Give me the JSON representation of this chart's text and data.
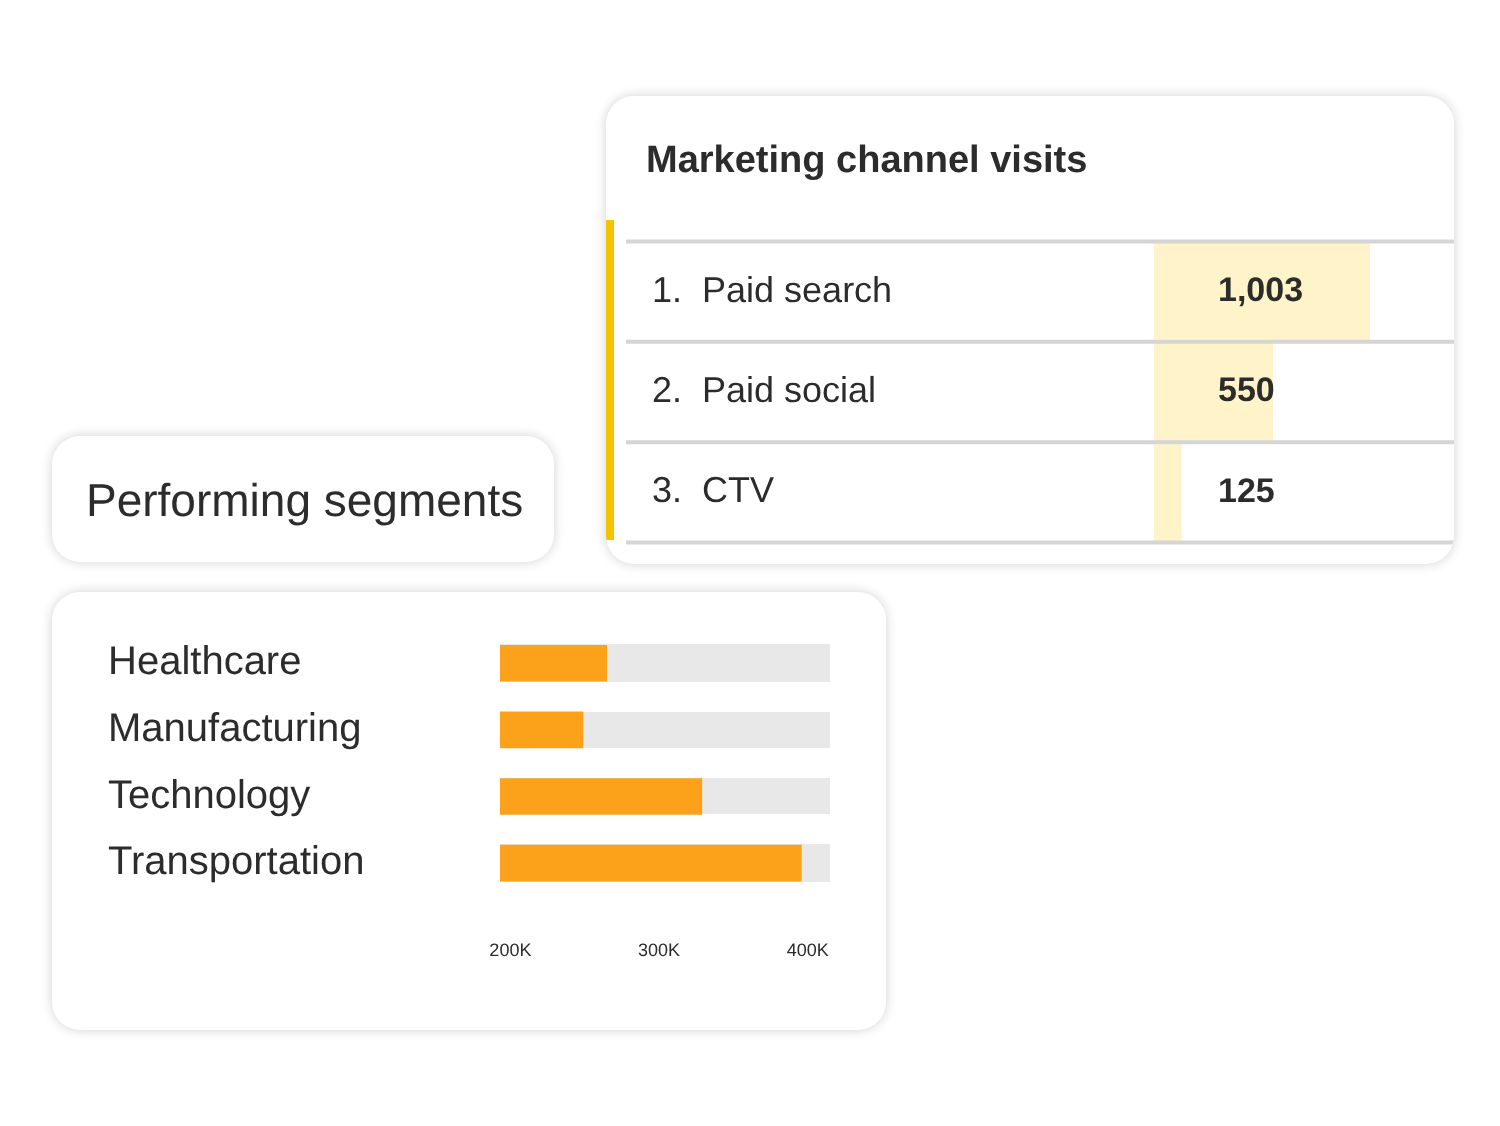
{
  "chart_data": [
    {
      "type": "bar",
      "title": "Marketing channel visits",
      "orientation": "horizontal",
      "categories": [
        "1.  Paid search",
        "2.  Paid social",
        "3.  CTV"
      ],
      "values": [
        1003,
        550,
        125
      ],
      "value_labels": [
        "1,003",
        "550",
        "125"
      ],
      "color": "#fff3c9",
      "grid": "y",
      "tick_labels": "y"
    },
    {
      "type": "bar",
      "title": "Performing segments",
      "orientation": "horizontal",
      "categories": [
        "Healthcare",
        "Manufacturing",
        "Technology",
        "Transportation"
      ],
      "values": [
        265000,
        249000,
        329000,
        396000
      ],
      "color": "#fba21a",
      "xlim": [
        193000,
        415000
      ],
      "xticks": [
        {
          "value": 200000,
          "label": "200K"
        },
        {
          "value": 300000,
          "label": "300K"
        },
        {
          "value": 400000,
          "label": "400K"
        }
      ]
    }
  ]
}
